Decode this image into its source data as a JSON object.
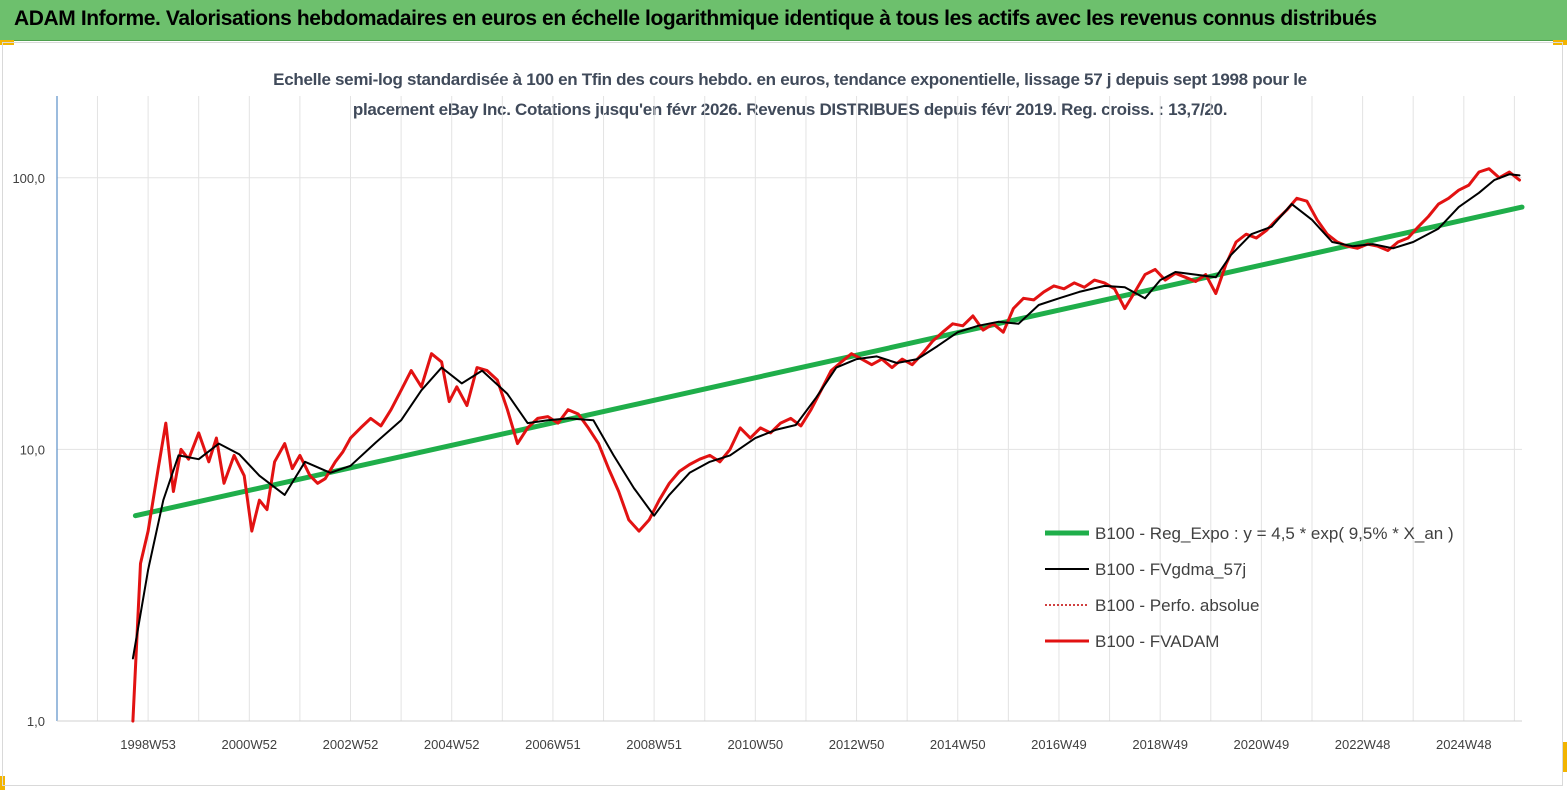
{
  "banner": {
    "title": "ADAM Informe. Valorisations hebdomadaires en euros en échelle logarithmique identique à tous les actifs avec les revenus connus distribués"
  },
  "chart_data": {
    "type": "line",
    "title_line1": "Echelle semi-log standardisée à 100 en Tfin des cours hebdo. en euros, tendance exponentielle, lissage 57 j depuis sept 1998  pour le",
    "title_line2": "placement eBay Inc. Cotations jusqu'en févr 2026. Revenus DISTRIBUES depuis févr 2019. Reg. croiss. : 13,7/20.",
    "y_scale": "log",
    "ylim": [
      1,
      200
    ],
    "y_ticks": [
      1,
      10,
      100
    ],
    "y_tick_labels": [
      "1,0",
      "10,0",
      "100,0"
    ],
    "x_range": [
      1997.2,
      2026.15
    ],
    "x_tick_positions": [
      1999.0,
      2001.0,
      2003.0,
      2005.0,
      2007.0,
      2009.0,
      2011.0,
      2013.0,
      2015.0,
      2017.0,
      2019.0,
      2021.0,
      2023.0,
      2025.0
    ],
    "x_tick_labels": [
      "1998W53",
      "2000W52",
      "2002W52",
      "2004W52",
      "2006W51",
      "2008W51",
      "2010W50",
      "2012W50",
      "2014W50",
      "2016W49",
      "2018W49",
      "2020W49",
      "2022W48",
      "2024W48"
    ],
    "grid": "vertical",
    "legend_position": "right-center",
    "series": [
      {
        "name": "B100 - Reg_Expo : y = 4,5 * exp( 9,5% *  X_an )",
        "color": "#1fae4a",
        "x": [
          1998.75,
          2026.15
        ],
        "y": [
          5.7,
          78
        ]
      },
      {
        "name": "B100 - FVgdma_57j",
        "color": "#000000",
        "x": [
          1998.7,
          1999.0,
          1999.3,
          1999.6,
          2000.0,
          2000.4,
          2000.8,
          2001.2,
          2001.7,
          2002.1,
          2002.6,
          2003.0,
          2003.5,
          2004.0,
          2004.4,
          2004.8,
          2005.2,
          2005.6,
          2006.1,
          2006.5,
          2006.9,
          2007.3,
          2007.8,
          2008.2,
          2008.6,
          2009.0,
          2009.3,
          2009.7,
          2010.1,
          2010.5,
          2011.0,
          2011.4,
          2011.8,
          2012.2,
          2012.6,
          2013.0,
          2013.4,
          2013.8,
          2014.2,
          2014.6,
          2015.0,
          2015.4,
          2015.8,
          2016.2,
          2016.6,
          2017.0,
          2017.4,
          2017.9,
          2018.3,
          2018.7,
          2019.0,
          2019.3,
          2019.7,
          2020.1,
          2020.4,
          2020.8,
          2021.2,
          2021.6,
          2022.0,
          2022.4,
          2022.8,
          2023.2,
          2023.6,
          2024.0,
          2024.5,
          2024.9,
          2025.3,
          2025.6,
          2025.9,
          2026.1
        ],
        "y": [
          1.7,
          3.6,
          6.5,
          9.5,
          9.2,
          10.5,
          9.6,
          8.0,
          6.8,
          9.0,
          8.2,
          8.7,
          10.6,
          12.8,
          16.5,
          20.0,
          17.5,
          19.5,
          16.0,
          12.5,
          12.8,
          13.0,
          12.8,
          9.5,
          7.2,
          5.7,
          6.8,
          8.2,
          9.0,
          9.5,
          11.0,
          11.8,
          12.3,
          15.5,
          20.0,
          21.5,
          22.0,
          20.8,
          21.5,
          24.0,
          27.0,
          28.5,
          29.5,
          29.0,
          34.0,
          36.0,
          38.0,
          40.0,
          39.5,
          36.0,
          42.0,
          45.0,
          44.0,
          43.0,
          52.0,
          62.0,
          66.0,
          80.0,
          70.0,
          58.0,
          56.0,
          57.0,
          55.0,
          58.0,
          65.0,
          78.0,
          88.0,
          98.0,
          103.0,
          102.0
        ]
      },
      {
        "name": "B100 - Perfo. absolue",
        "color": "#c00000",
        "x": [],
        "y": []
      },
      {
        "name": "B100 - FVADAM",
        "color": "#e21212",
        "x": [
          1998.7,
          1998.85,
          1999.0,
          1999.2,
          1999.35,
          1999.5,
          1999.65,
          1999.8,
          2000.0,
          2000.2,
          2000.35,
          2000.5,
          2000.7,
          2000.9,
          2001.05,
          2001.2,
          2001.35,
          2001.5,
          2001.7,
          2001.85,
          2002.0,
          2002.2,
          2002.35,
          2002.5,
          2002.7,
          2002.85,
          2003.0,
          2003.2,
          2003.4,
          2003.6,
          2003.8,
          2004.0,
          2004.2,
          2004.4,
          2004.6,
          2004.8,
          2004.95,
          2005.1,
          2005.3,
          2005.5,
          2005.7,
          2005.9,
          2006.1,
          2006.3,
          2006.5,
          2006.7,
          2006.9,
          2007.1,
          2007.3,
          2007.5,
          2007.7,
          2007.9,
          2008.1,
          2008.3,
          2008.5,
          2008.7,
          2008.9,
          2009.1,
          2009.3,
          2009.5,
          2009.7,
          2009.9,
          2010.1,
          2010.3,
          2010.5,
          2010.7,
          2010.9,
          2011.1,
          2011.3,
          2011.5,
          2011.7,
          2011.9,
          2012.1,
          2012.3,
          2012.5,
          2012.7,
          2012.9,
          2013.1,
          2013.3,
          2013.5,
          2013.7,
          2013.9,
          2014.1,
          2014.3,
          2014.5,
          2014.7,
          2014.9,
          2015.1,
          2015.3,
          2015.5,
          2015.7,
          2015.9,
          2016.1,
          2016.3,
          2016.5,
          2016.7,
          2016.9,
          2017.1,
          2017.3,
          2017.5,
          2017.7,
          2017.9,
          2018.1,
          2018.3,
          2018.5,
          2018.7,
          2018.9,
          2019.1,
          2019.3,
          2019.5,
          2019.7,
          2019.9,
          2020.1,
          2020.3,
          2020.5,
          2020.7,
          2020.9,
          2021.1,
          2021.3,
          2021.5,
          2021.7,
          2021.9,
          2022.1,
          2022.3,
          2022.5,
          2022.7,
          2022.9,
          2023.1,
          2023.3,
          2023.5,
          2023.7,
          2023.9,
          2024.1,
          2024.3,
          2024.5,
          2024.7,
          2024.9,
          2025.1,
          2025.3,
          2025.5,
          2025.7,
          2025.9,
          2026.1
        ],
        "y": [
          1.0,
          3.8,
          5.0,
          8.5,
          12.5,
          7.0,
          10.0,
          9.2,
          11.5,
          9.0,
          11.0,
          7.5,
          9.5,
          8.0,
          5.0,
          6.5,
          6.0,
          9.0,
          10.5,
          8.5,
          9.5,
          8.0,
          7.5,
          7.8,
          9.0,
          9.8,
          11.0,
          12.0,
          13.0,
          12.2,
          14.0,
          16.5,
          19.5,
          17.0,
          22.5,
          21.0,
          15.0,
          17.0,
          14.5,
          20.0,
          19.5,
          18.0,
          14.0,
          10.5,
          12.0,
          13.0,
          13.2,
          12.5,
          14.0,
          13.5,
          12.0,
          10.5,
          8.5,
          7.0,
          5.5,
          5.0,
          5.5,
          6.5,
          7.5,
          8.3,
          8.8,
          9.2,
          9.5,
          9.0,
          10.0,
          12.0,
          11.0,
          12.0,
          11.5,
          12.5,
          13.0,
          12.2,
          14.0,
          16.5,
          19.5,
          21.0,
          22.5,
          21.5,
          20.5,
          21.5,
          20.0,
          21.5,
          20.5,
          22.5,
          25.0,
          27.0,
          29.0,
          28.5,
          31.0,
          27.5,
          29.0,
          27.0,
          33.0,
          36.0,
          35.5,
          38.0,
          40.0,
          39.0,
          41.0,
          39.5,
          42.0,
          41.0,
          39.0,
          33.0,
          38.0,
          44.0,
          46.0,
          42.0,
          44.5,
          43.0,
          41.5,
          44.0,
          37.5,
          48.0,
          58.0,
          62.0,
          60.0,
          64.0,
          70.0,
          76.0,
          84.0,
          82.0,
          70.0,
          62.0,
          58.0,
          56.0,
          55.0,
          57.0,
          56.0,
          54.0,
          58.0,
          60.0,
          66.0,
          72.0,
          80.0,
          84.0,
          90.0,
          94.0,
          105.0,
          108.0,
          100.0,
          105.0,
          98.0
        ]
      }
    ]
  }
}
